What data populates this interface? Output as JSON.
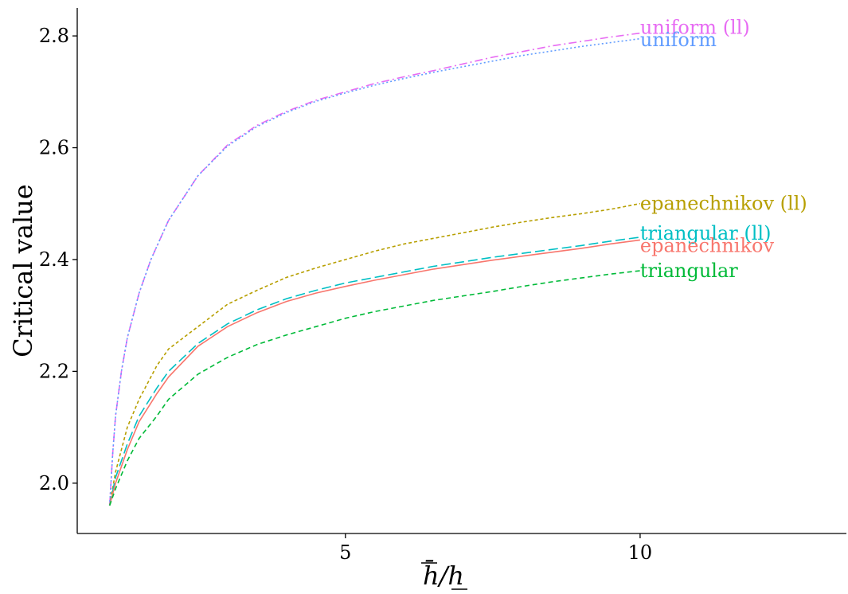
{
  "chart_data": {
    "type": "line",
    "title": "",
    "xlabel": "h̄/h",
    "ylabel": "Critical value",
    "xlim": [
      0.45,
      13.5
    ],
    "ylim": [
      1.91,
      2.85
    ],
    "xticks": [
      5,
      10
    ],
    "xtick_labels": [
      "5",
      "10"
    ],
    "yticks": [
      2.0,
      2.2,
      2.4,
      2.6,
      2.8
    ],
    "ytick_labels": [
      "2.0",
      "2.2",
      "2.4",
      "2.6",
      "2.8"
    ],
    "grid": false,
    "legend": "direct labels at line ends",
    "series": [
      {
        "name": "uniform (ll)",
        "color": "#e76bf3",
        "dash": "10,4,2,4",
        "x": [
          1,
          1.05,
          1.1,
          1.2,
          1.3,
          1.5,
          1.7,
          2,
          2.5,
          3,
          3.5,
          4,
          4.5,
          5,
          5.5,
          6,
          6.5,
          7,
          7.5,
          8,
          8.5,
          9,
          9.5,
          10
        ],
        "y": [
          1.96,
          2.05,
          2.12,
          2.2,
          2.26,
          2.34,
          2.4,
          2.47,
          2.55,
          2.605,
          2.64,
          2.665,
          2.685,
          2.7,
          2.715,
          2.727,
          2.738,
          2.75,
          2.762,
          2.772,
          2.782,
          2.79,
          2.798,
          2.805
        ]
      },
      {
        "name": "uniform",
        "color": "#619cff",
        "dash": "2,3",
        "x": [
          1,
          1.05,
          1.1,
          1.2,
          1.3,
          1.5,
          1.7,
          2,
          2.5,
          3,
          3.5,
          4,
          4.5,
          5,
          5.5,
          6,
          6.5,
          7,
          7.5,
          8,
          8.5,
          9,
          9.5,
          10
        ],
        "y": [
          1.96,
          2.05,
          2.12,
          2.2,
          2.26,
          2.34,
          2.4,
          2.47,
          2.55,
          2.603,
          2.638,
          2.663,
          2.683,
          2.698,
          2.712,
          2.724,
          2.735,
          2.745,
          2.755,
          2.765,
          2.773,
          2.781,
          2.788,
          2.795
        ]
      },
      {
        "name": "epanechnikov (ll)",
        "color": "#b79f00",
        "dash": "4,3",
        "x": [
          1,
          1.1,
          1.3,
          1.5,
          1.8,
          2,
          2.5,
          3,
          3.5,
          4,
          4.5,
          5,
          5.5,
          6,
          6.5,
          7,
          7.5,
          8,
          8.5,
          9,
          9.5,
          10
        ],
        "y": [
          1.96,
          2.02,
          2.1,
          2.15,
          2.21,
          2.24,
          2.28,
          2.32,
          2.345,
          2.368,
          2.385,
          2.4,
          2.415,
          2.428,
          2.438,
          2.448,
          2.458,
          2.467,
          2.475,
          2.482,
          2.49,
          2.5
        ]
      },
      {
        "name": "triangular (ll)",
        "color": "#00bfc4",
        "dash": "12,5",
        "x": [
          1,
          1.1,
          1.3,
          1.5,
          1.8,
          2,
          2.5,
          3,
          3.5,
          4,
          4.5,
          5,
          5.5,
          6,
          6.5,
          7,
          7.5,
          8,
          8.5,
          9,
          9.5,
          10
        ],
        "y": [
          1.96,
          2.01,
          2.07,
          2.12,
          2.17,
          2.2,
          2.25,
          2.285,
          2.31,
          2.33,
          2.345,
          2.358,
          2.368,
          2.378,
          2.388,
          2.396,
          2.404,
          2.411,
          2.418,
          2.425,
          2.433,
          2.44
        ]
      },
      {
        "name": "epanechnikov",
        "color": "#f8766d",
        "dash": "",
        "x": [
          1,
          1.1,
          1.3,
          1.5,
          1.8,
          2,
          2.5,
          3,
          3.5,
          4,
          4.5,
          5,
          5.5,
          6,
          6.5,
          7,
          7.5,
          8,
          8.5,
          9,
          9.5,
          10
        ],
        "y": [
          1.96,
          2.0,
          2.06,
          2.11,
          2.16,
          2.19,
          2.245,
          2.28,
          2.305,
          2.325,
          2.34,
          2.352,
          2.363,
          2.373,
          2.383,
          2.391,
          2.399,
          2.406,
          2.413,
          2.42,
          2.428,
          2.435
        ]
      },
      {
        "name": "triangular",
        "color": "#00ba38",
        "dash": "6,4",
        "x": [
          1,
          1.1,
          1.3,
          1.5,
          1.8,
          2,
          2.5,
          3,
          3.5,
          4,
          4.5,
          5,
          5.5,
          6,
          6.5,
          7,
          7.5,
          8,
          8.5,
          9,
          9.5,
          10
        ],
        "y": [
          1.96,
          1.99,
          2.04,
          2.08,
          2.12,
          2.15,
          2.195,
          2.225,
          2.248,
          2.265,
          2.28,
          2.295,
          2.307,
          2.317,
          2.327,
          2.335,
          2.343,
          2.352,
          2.36,
          2.367,
          2.374,
          2.38
        ]
      }
    ],
    "labels": [
      {
        "text": "uniform (ll)",
        "x": 10,
        "y": 2.815,
        "color": "#e76bf3"
      },
      {
        "text": "uniform",
        "x": 10,
        "y": 2.793,
        "color": "#619cff"
      },
      {
        "text": "epanechnikov (ll)",
        "x": 10,
        "y": 2.5,
        "color": "#b79f00"
      },
      {
        "text": "triangular (ll)",
        "x": 10,
        "y": 2.447,
        "color": "#00bfc4"
      },
      {
        "text": "epanechnikov",
        "x": 10,
        "y": 2.425,
        "color": "#f8766d"
      },
      {
        "text": "triangular",
        "x": 10,
        "y": 2.38,
        "color": "#00ba38"
      }
    ]
  }
}
